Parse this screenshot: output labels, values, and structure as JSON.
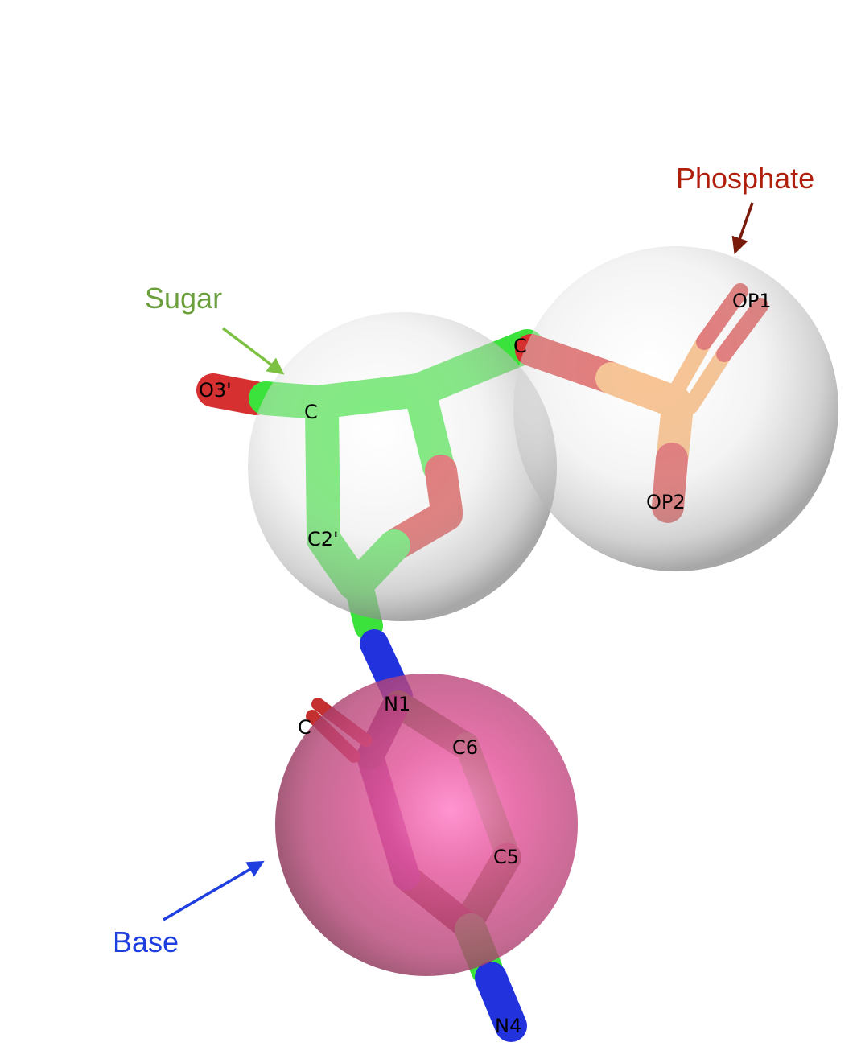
{
  "annotations": {
    "phosphate": {
      "label": "Phosphate",
      "color": "#b01e0c"
    },
    "sugar": {
      "label": "Sugar",
      "color": "#6a9f3b"
    },
    "base": {
      "label": "Base",
      "color": "#1e3ee0"
    }
  },
  "atom_labels": {
    "op1": "OP1",
    "op2": "OP2",
    "o3p": "O3'",
    "c3p": "C",
    "c4p": "C",
    "c2p": "C2'",
    "n1": "N1",
    "c6": "C6",
    "c5": "C5",
    "o2": "C",
    "n4": "N4"
  },
  "colors": {
    "carbon": "#3be23b",
    "oxygen": "#e02b2b",
    "nitrogen": "#2233dd",
    "phosphorus": "#f5a55a",
    "sphere_grey": "#c8c8c8",
    "sphere_base": "#d44680"
  }
}
